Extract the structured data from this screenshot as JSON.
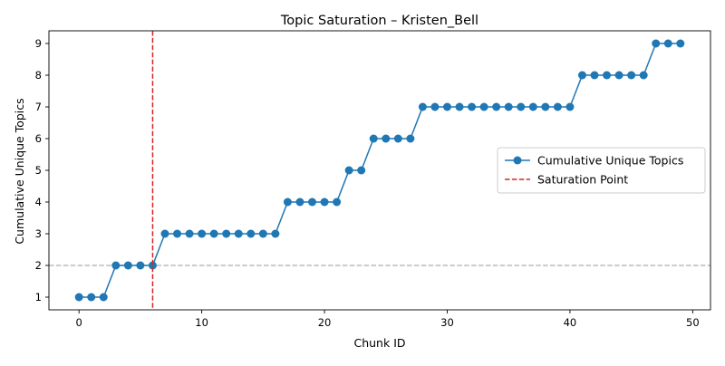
{
  "chart_data": {
    "type": "line",
    "title": "Topic Saturation – Kristen_Bell",
    "xlabel": "Chunk ID",
    "ylabel": "Cumulative Unique Topics",
    "xlim": [
      -2.45,
      51.45
    ],
    "ylim": [
      0.6,
      9.4
    ],
    "x_ticks": [
      0,
      10,
      20,
      30,
      40,
      50
    ],
    "y_ticks": [
      1,
      2,
      3,
      4,
      5,
      6,
      7,
      8,
      9
    ],
    "series": [
      {
        "name": "Cumulative Unique Topics",
        "color": "#1f77b4",
        "marker": "circle",
        "x": [
          0,
          1,
          2,
          3,
          4,
          5,
          6,
          7,
          8,
          9,
          10,
          11,
          12,
          13,
          14,
          15,
          16,
          17,
          18,
          19,
          20,
          21,
          22,
          23,
          24,
          25,
          26,
          27,
          28,
          29,
          30,
          31,
          32,
          33,
          34,
          35,
          36,
          37,
          38,
          39,
          40,
          41,
          42,
          43,
          44,
          45,
          46,
          47,
          48,
          49
        ],
        "y": [
          1,
          1,
          1,
          2,
          2,
          2,
          2,
          3,
          3,
          3,
          3,
          3,
          3,
          3,
          3,
          3,
          3,
          4,
          4,
          4,
          4,
          4,
          5,
          5,
          6,
          6,
          6,
          6,
          7,
          7,
          7,
          7,
          7,
          7,
          7,
          7,
          7,
          7,
          7,
          7,
          7,
          8,
          8,
          8,
          8,
          8,
          8,
          9,
          9,
          9
        ]
      }
    ],
    "saturation_point": {
      "label": "Saturation Point",
      "x": 6,
      "color": "#d62728",
      "style": "dashed"
    },
    "reference_line": {
      "y": 2,
      "color": "#bbbbbb",
      "style": "dashed"
    },
    "legend": {
      "placement": "center-right",
      "entries": [
        "Cumulative Unique Topics",
        "Saturation Point"
      ]
    },
    "grid": false
  }
}
